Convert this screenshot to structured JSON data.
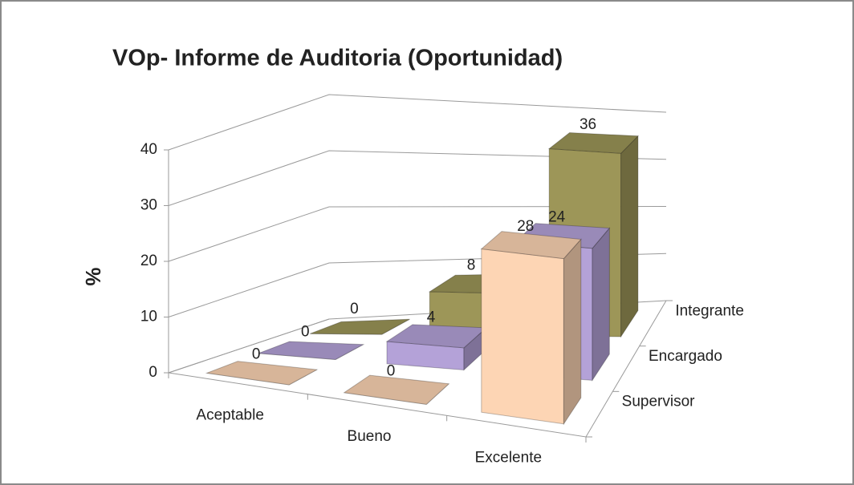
{
  "chart_data": {
    "type": "bar3d",
    "title": "VOp- Informe de Auditoria (Oportunidad)",
    "y_label": "%",
    "categories": [
      "Aceptable",
      "Bueno",
      "Excelente"
    ],
    "series": [
      {
        "name": "Supervisor",
        "color": "#fdd5b4",
        "values": [
          0,
          0,
          28
        ]
      },
      {
        "name": "Encargado",
        "color": "#b4a2d8",
        "values": [
          0,
          4,
          24
        ]
      },
      {
        "name": "Integrante",
        "color": "#9d9658",
        "values": [
          0,
          8,
          36
        ]
      }
    ],
    "ylim": [
      0,
      40
    ],
    "yticks": [
      0,
      10,
      20,
      30,
      40
    ],
    "grid": true
  }
}
